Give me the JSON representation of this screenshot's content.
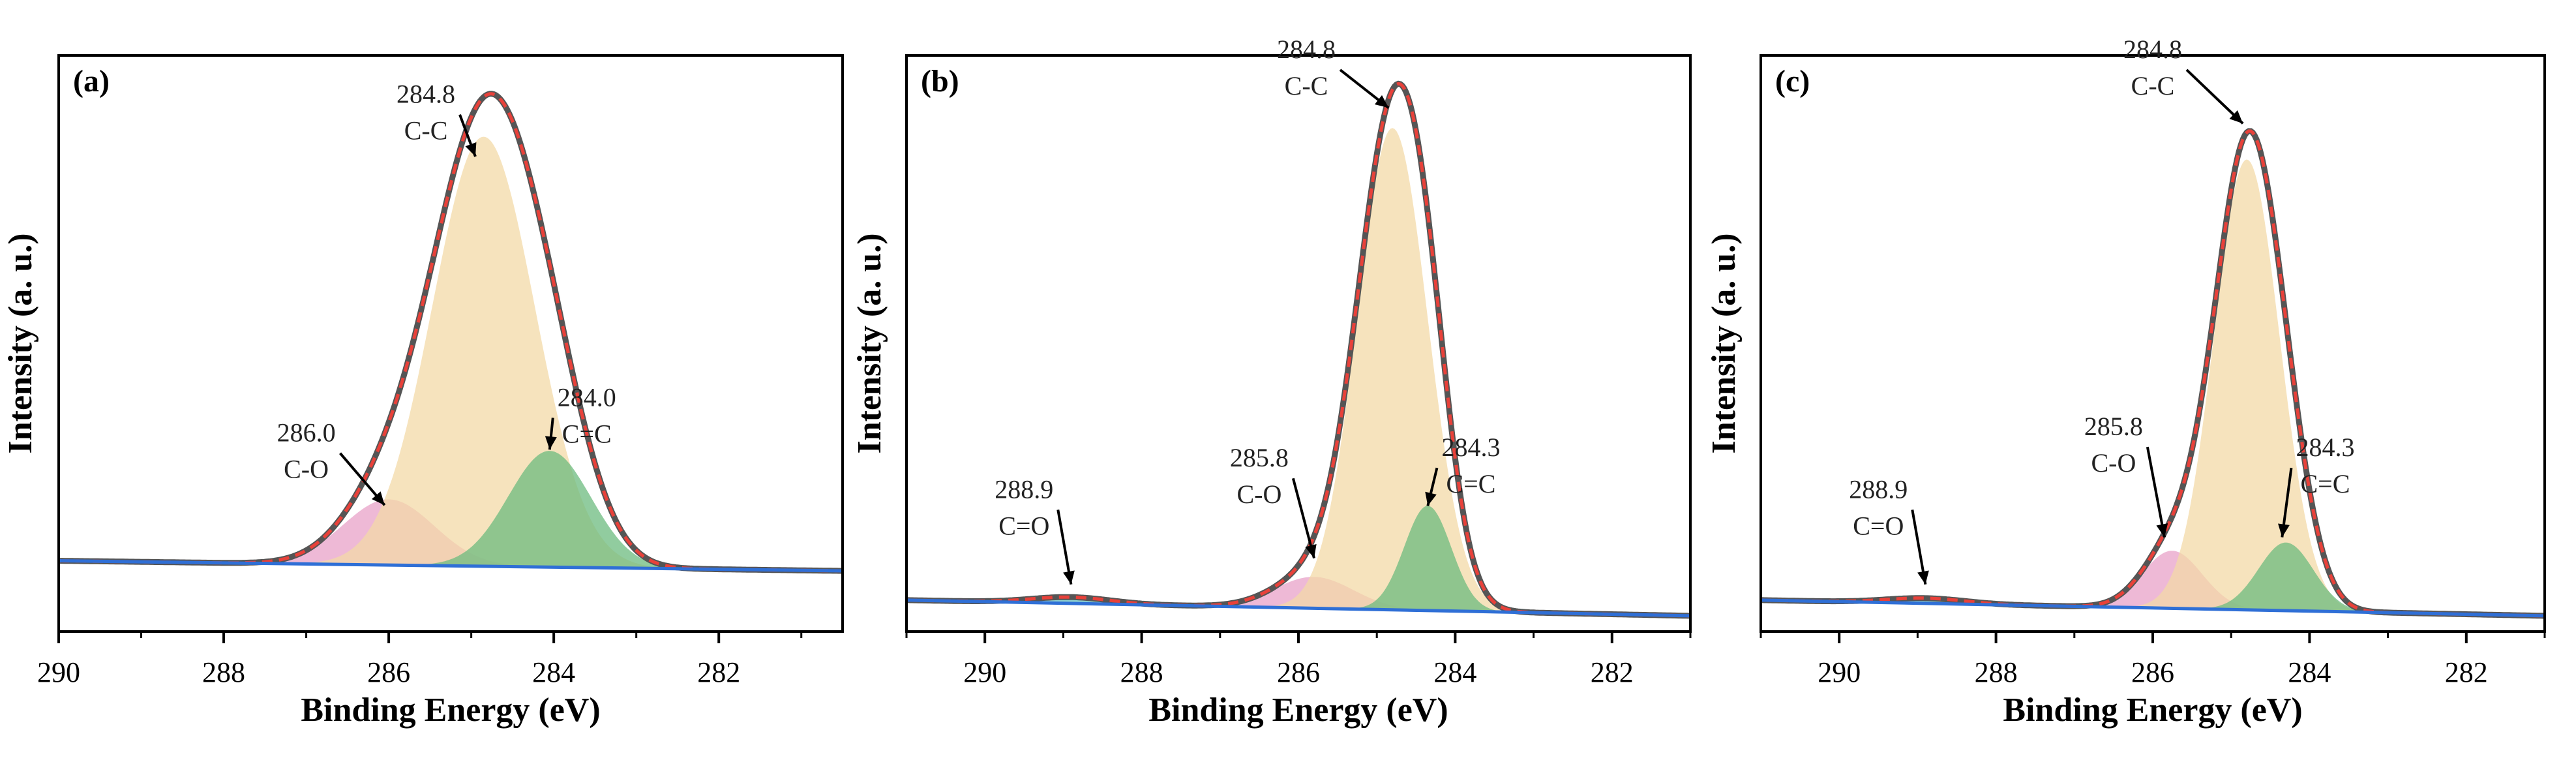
{
  "chart_data": [
    {
      "type": "area",
      "panel_label": "(a)",
      "xlabel": "Binding Energy (eV)",
      "ylabel": "Intensity (a. u.)",
      "xlim": [
        290,
        280.5
      ],
      "ylim": [
        -0.14,
        1.0
      ],
      "xticks": [
        "290",
        "288",
        "286",
        "284",
        "282"
      ],
      "baseline": {
        "start": 0.0,
        "end": -0.02
      },
      "peaks": [
        {
          "center": 286.0,
          "amplitude": 0.13,
          "sigma": 0.55,
          "color": "#e8a1c8",
          "name": "C-O"
        },
        {
          "center": 284.85,
          "amplitude": 0.85,
          "sigma": 0.62,
          "color": "#f3d9a7",
          "name": "C-C"
        },
        {
          "center": 284.05,
          "amplitude": 0.23,
          "sigma": 0.5,
          "color": "#6cbb7f",
          "name": "C=C"
        }
      ],
      "annotations": [
        {
          "value": "284.8",
          "name": "C-C",
          "x": 285.55,
          "y": 0.87,
          "tx": 284.95,
          "ty": 0.8
        },
        {
          "value": "286.0",
          "name": "C-O",
          "x": 287.0,
          "y": 0.2,
          "tx": 286.05,
          "ty": 0.11
        },
        {
          "value": "284.0",
          "name": "C=C",
          "x": 283.6,
          "y": 0.27,
          "tx": 284.05,
          "ty": 0.22
        }
      ]
    },
    {
      "type": "area",
      "panel_label": "(b)",
      "xlabel": "Binding Energy (eV)",
      "ylabel": "Intensity (a. u.)",
      "xlim": [
        291,
        281
      ],
      "ylim": [
        -0.06,
        1.04
      ],
      "xticks": [
        "290",
        "288",
        "286",
        "284",
        "282"
      ],
      "baseline": {
        "start": 0.0,
        "end": -0.03
      },
      "peaks": [
        {
          "center": 288.9,
          "amplitude": 0.012,
          "sigma": 0.5,
          "color": "#66bfbf",
          "name": "C=O"
        },
        {
          "center": 285.8,
          "amplitude": 0.06,
          "sigma": 0.5,
          "color": "#e8a1c8",
          "name": "C-O"
        },
        {
          "center": 284.8,
          "amplitude": 0.92,
          "sigma": 0.45,
          "color": "#f3d9a7",
          "name": "C-C"
        },
        {
          "center": 284.35,
          "amplitude": 0.2,
          "sigma": 0.3,
          "color": "#6cbb7f",
          "name": "C=C"
        }
      ],
      "annotations": [
        {
          "value": "284.8",
          "name": "C-C",
          "x": 285.9,
          "y": 1.0,
          "tx": 284.85,
          "ty": 0.94
        },
        {
          "value": "285.8",
          "name": "C-O",
          "x": 286.5,
          "y": 0.22,
          "tx": 285.8,
          "ty": 0.08
        },
        {
          "value": "284.3",
          "name": "C=C",
          "x": 283.8,
          "y": 0.24,
          "tx": 284.35,
          "ty": 0.18
        },
        {
          "value": "288.9",
          "name": "C=O",
          "x": 289.5,
          "y": 0.16,
          "tx": 288.9,
          "ty": 0.03
        }
      ]
    },
    {
      "type": "area",
      "panel_label": "(c)",
      "xlabel": "Binding Energy (eV)",
      "ylabel": "Intensity (a. u.)",
      "xlim": [
        291,
        281
      ],
      "ylim": [
        -0.06,
        1.04
      ],
      "xticks": [
        "290",
        "288",
        "286",
        "284",
        "282"
      ],
      "baseline": {
        "start": 0.0,
        "end": -0.03
      },
      "peaks": [
        {
          "center": 288.9,
          "amplitude": 0.01,
          "sigma": 0.5,
          "color": "#66bfbf",
          "name": "C=O"
        },
        {
          "center": 285.75,
          "amplitude": 0.11,
          "sigma": 0.38,
          "color": "#e8a1c8",
          "name": "C-O"
        },
        {
          "center": 284.8,
          "amplitude": 0.86,
          "sigma": 0.42,
          "color": "#f3d9a7",
          "name": "C-C"
        },
        {
          "center": 284.3,
          "amplitude": 0.13,
          "sigma": 0.35,
          "color": "#6cbb7f",
          "name": "C=C"
        }
      ],
      "annotations": [
        {
          "value": "284.8",
          "name": "C-C",
          "x": 286.0,
          "y": 1.0,
          "tx": 284.85,
          "ty": 0.91
        },
        {
          "value": "285.8",
          "name": "C-O",
          "x": 286.5,
          "y": 0.28,
          "tx": 285.85,
          "ty": 0.12
        },
        {
          "value": "284.3",
          "name": "C=C",
          "x": 283.8,
          "y": 0.24,
          "tx": 284.35,
          "ty": 0.12
        },
        {
          "value": "288.9",
          "name": "C=O",
          "x": 289.5,
          "y": 0.16,
          "tx": 288.9,
          "ty": 0.03
        }
      ]
    }
  ],
  "colors": {
    "envelope": "#555555",
    "fit": "#e8413a",
    "baseline": "#2f6fd6"
  }
}
